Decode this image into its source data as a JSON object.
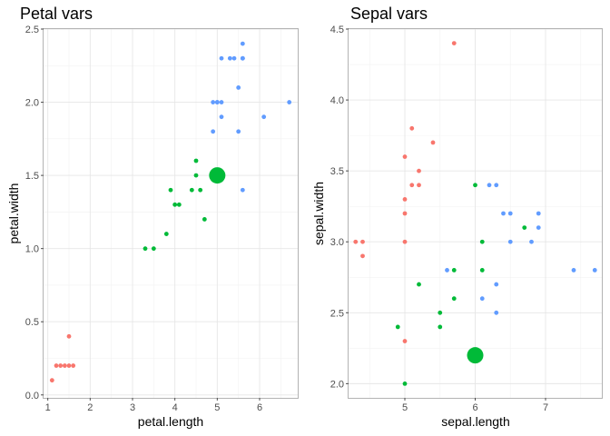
{
  "colors": {
    "setosa": "#F8766D",
    "versicolor": "#00BA38",
    "virginica": "#619CFF"
  },
  "chart_data": [
    {
      "type": "scatter",
      "title": "Petal vars",
      "xlabel": "petal.length",
      "ylabel": "petal.width",
      "xlim": [
        0.9,
        6.9
      ],
      "ylim": [
        -0.02,
        2.5
      ],
      "xticks": [
        1,
        2,
        3,
        4,
        5,
        6
      ],
      "yticks": [
        0.0,
        0.5,
        1.0,
        1.5,
        2.0,
        2.5
      ],
      "xtick_labels": [
        "1",
        "2",
        "3",
        "4",
        "5",
        "6"
      ],
      "ytick_labels": [
        "0.0",
        "0.5",
        "1.0",
        "1.5",
        "2.0",
        "2.5"
      ],
      "grid": true,
      "legend": "none",
      "series": [
        {
          "group": "setosa",
          "x": [
            1.1,
            1.2,
            1.3,
            1.4,
            1.5,
            1.6,
            1.5
          ],
          "y": [
            0.1,
            0.2,
            0.2,
            0.2,
            0.2,
            0.2,
            0.4
          ]
        },
        {
          "group": "versicolor",
          "x": [
            3.3,
            3.5,
            3.8,
            3.9,
            4.0,
            4.1,
            4.4,
            4.5,
            4.6,
            4.5,
            4.7
          ],
          "y": [
            1.0,
            1.0,
            1.1,
            1.4,
            1.3,
            1.3,
            1.4,
            1.6,
            1.4,
            1.5,
            1.2
          ]
        },
        {
          "group": "virginica",
          "x": [
            4.9,
            5.0,
            5.1,
            5.1,
            5.6,
            6.1,
            6.7,
            5.6,
            5.5,
            5.0,
            5.5,
            5.6,
            4.9,
            5.1,
            5.3,
            5.6,
            5.4,
            5.6
          ],
          "y": [
            1.8,
            2.0,
            1.9,
            2.0,
            1.4,
            1.9,
            2.0,
            2.4,
            1.8,
            2.0,
            2.1,
            2.3,
            2.0,
            2.3,
            2.3,
            2.3,
            2.3,
            2.3
          ]
        }
      ],
      "highlight": {
        "group": "versicolor",
        "x": 5.0,
        "y": 1.5
      }
    },
    {
      "type": "scatter",
      "title": "Sepal vars",
      "xlabel": "sepal.length",
      "ylabel": "sepal.width",
      "xlim": [
        4.2,
        7.8
      ],
      "ylim": [
        1.9,
        4.5
      ],
      "xticks": [
        5,
        6,
        7
      ],
      "yticks": [
        2.0,
        2.5,
        3.0,
        3.5,
        4.0,
        4.5
      ],
      "xtick_labels": [
        "5",
        "6",
        "7"
      ],
      "ytick_labels": [
        "2.0",
        "2.5",
        "3.0",
        "3.5",
        "4.0",
        "4.5"
      ],
      "grid": true,
      "legend": "none",
      "series": [
        {
          "group": "setosa",
          "x": [
            5.7,
            5.1,
            5.4,
            5.0,
            5.2,
            5.2,
            5.0,
            5.1,
            5.0,
            5.0,
            4.3,
            4.4,
            4.4,
            5.0
          ],
          "y": [
            4.4,
            3.8,
            3.7,
            3.6,
            3.5,
            3.4,
            3.3,
            3.4,
            3.2,
            3.0,
            3.0,
            3.0,
            2.9,
            2.3
          ]
        },
        {
          "group": "versicolor",
          "x": [
            6.0,
            6.7,
            6.1,
            5.7,
            5.2,
            5.7,
            5.5,
            4.9,
            5.5,
            5.0,
            6.1
          ],
          "y": [
            3.4,
            3.1,
            3.0,
            2.8,
            2.7,
            2.6,
            2.5,
            2.4,
            2.4,
            2.0,
            2.8
          ]
        },
        {
          "group": "virginica",
          "x": [
            6.2,
            6.3,
            6.4,
            6.5,
            6.9,
            6.5,
            6.8,
            6.9,
            7.4,
            7.7,
            5.6,
            6.1,
            6.3,
            6.3
          ],
          "y": [
            3.4,
            3.4,
            3.2,
            3.2,
            3.2,
            3.0,
            3.0,
            3.1,
            2.8,
            2.8,
            2.8,
            2.6,
            2.7,
            2.5
          ]
        }
      ],
      "highlight": {
        "group": "versicolor",
        "x": 6.0,
        "y": 2.2
      }
    }
  ]
}
